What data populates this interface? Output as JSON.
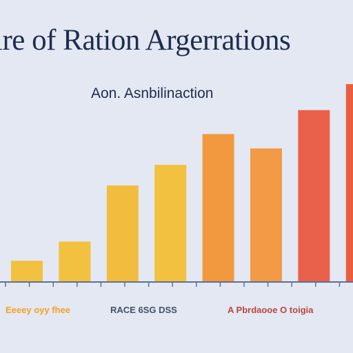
{
  "chart_data": {
    "type": "bar",
    "title": "ire of Ration Argerrations",
    "subtitle": "Aon. Asnbilinaction",
    "categories": [
      "",
      "",
      "",
      "",
      "",
      "",
      "",
      ""
    ],
    "values": [
      30,
      58,
      140,
      170,
      215,
      194,
      250,
      288
    ],
    "ylim": [
      0,
      290
    ],
    "grid": false,
    "legend": "none",
    "colors": [
      "#f1c13f",
      "#f1c13f",
      "#f2bd3f",
      "#f1c13f",
      "#f2993f",
      "#f29a45",
      "#e9614a",
      "#ea5e3f"
    ],
    "axis_color": "#5b6f9a",
    "label_groups": [
      {
        "text": "Eeeey oyy fhee",
        "color": "#f3a21e"
      },
      {
        "text": "RACE 6SG DSS",
        "color": "#445066"
      },
      {
        "text": "A Pbrdaooe O toigia",
        "color": "#b8473c"
      }
    ]
  }
}
